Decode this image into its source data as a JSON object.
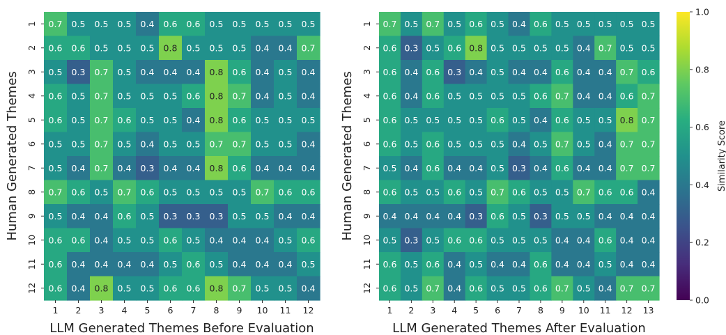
{
  "chart_data": [
    {
      "type": "heatmap",
      "ylabel": "Human Generated Themes",
      "xlabel": "LLM Generated Themes Before Evaluation",
      "x_categories": [
        "1",
        "2",
        "3",
        "4",
        "5",
        "6",
        "7",
        "8",
        "9",
        "10",
        "11",
        "12"
      ],
      "y_categories": [
        "1",
        "2",
        "3",
        "4",
        "5",
        "6",
        "7",
        "8",
        "9",
        "10",
        "11",
        "12"
      ],
      "values": [
        [
          0.7,
          0.5,
          0.5,
          0.5,
          0.4,
          0.6,
          0.6,
          0.5,
          0.5,
          0.5,
          0.5,
          0.5
        ],
        [
          0.6,
          0.6,
          0.5,
          0.5,
          0.5,
          0.8,
          0.5,
          0.5,
          0.5,
          0.4,
          0.4,
          0.7
        ],
        [
          0.5,
          0.3,
          0.7,
          0.5,
          0.4,
          0.4,
          0.4,
          0.8,
          0.6,
          0.4,
          0.5,
          0.4
        ],
        [
          0.6,
          0.5,
          0.7,
          0.5,
          0.5,
          0.5,
          0.6,
          0.8,
          0.7,
          0.4,
          0.5,
          0.4
        ],
        [
          0.6,
          0.5,
          0.7,
          0.6,
          0.5,
          0.5,
          0.4,
          0.8,
          0.6,
          0.5,
          0.5,
          0.5
        ],
        [
          0.5,
          0.5,
          0.7,
          0.5,
          0.4,
          0.5,
          0.5,
          0.7,
          0.7,
          0.5,
          0.5,
          0.4
        ],
        [
          0.5,
          0.4,
          0.7,
          0.4,
          0.3,
          0.4,
          0.4,
          0.8,
          0.6,
          0.4,
          0.4,
          0.4
        ],
        [
          0.7,
          0.6,
          0.5,
          0.7,
          0.6,
          0.5,
          0.5,
          0.5,
          0.5,
          0.7,
          0.6,
          0.6
        ],
        [
          0.5,
          0.4,
          0.4,
          0.6,
          0.5,
          0.3,
          0.3,
          0.3,
          0.5,
          0.5,
          0.4,
          0.4
        ],
        [
          0.6,
          0.6,
          0.4,
          0.5,
          0.5,
          0.6,
          0.5,
          0.4,
          0.4,
          0.4,
          0.5,
          0.6
        ],
        [
          0.6,
          0.4,
          0.4,
          0.4,
          0.4,
          0.5,
          0.6,
          0.5,
          0.4,
          0.4,
          0.4,
          0.5
        ],
        [
          0.6,
          0.4,
          0.8,
          0.5,
          0.5,
          0.6,
          0.6,
          0.8,
          0.7,
          0.5,
          0.5,
          0.4
        ]
      ]
    },
    {
      "type": "heatmap",
      "ylabel": "Human Generated Themes",
      "xlabel": "LLM Generated Themes After Evaluation",
      "x_categories": [
        "1",
        "2",
        "3",
        "4",
        "5",
        "6",
        "7",
        "8",
        "9",
        "10",
        "11",
        "12",
        "13"
      ],
      "y_categories": [
        "1",
        "2",
        "3",
        "4",
        "5",
        "6",
        "7",
        "8",
        "9",
        "10",
        "11",
        "12"
      ],
      "values": [
        [
          0.7,
          0.5,
          0.7,
          0.5,
          0.6,
          0.5,
          0.4,
          0.6,
          0.5,
          0.5,
          0.5,
          0.5,
          0.5
        ],
        [
          0.6,
          0.3,
          0.5,
          0.6,
          0.8,
          0.5,
          0.5,
          0.5,
          0.5,
          0.4,
          0.7,
          0.5,
          0.5
        ],
        [
          0.6,
          0.4,
          0.6,
          0.3,
          0.4,
          0.5,
          0.4,
          0.4,
          0.6,
          0.4,
          0.4,
          0.7,
          0.6
        ],
        [
          0.6,
          0.4,
          0.6,
          0.5,
          0.5,
          0.5,
          0.5,
          0.6,
          0.7,
          0.4,
          0.4,
          0.6,
          0.7
        ],
        [
          0.6,
          0.5,
          0.5,
          0.5,
          0.5,
          0.6,
          0.5,
          0.4,
          0.6,
          0.5,
          0.5,
          0.8,
          0.7
        ],
        [
          0.6,
          0.5,
          0.6,
          0.5,
          0.5,
          0.5,
          0.4,
          0.5,
          0.7,
          0.5,
          0.4,
          0.7,
          0.7
        ],
        [
          0.5,
          0.4,
          0.6,
          0.4,
          0.4,
          0.5,
          0.3,
          0.4,
          0.6,
          0.4,
          0.4,
          0.7,
          0.7
        ],
        [
          0.6,
          0.5,
          0.5,
          0.6,
          0.5,
          0.7,
          0.6,
          0.5,
          0.5,
          0.7,
          0.6,
          0.6,
          0.4
        ],
        [
          0.4,
          0.4,
          0.4,
          0.4,
          0.3,
          0.6,
          0.5,
          0.3,
          0.5,
          0.5,
          0.4,
          0.4,
          0.4
        ],
        [
          0.5,
          0.3,
          0.5,
          0.6,
          0.6,
          0.5,
          0.5,
          0.5,
          0.4,
          0.4,
          0.6,
          0.4,
          0.4
        ],
        [
          0.6,
          0.5,
          0.6,
          0.4,
          0.5,
          0.4,
          0.4,
          0.6,
          0.4,
          0.4,
          0.5,
          0.4,
          0.4
        ],
        [
          0.6,
          0.5,
          0.7,
          0.4,
          0.6,
          0.5,
          0.5,
          0.6,
          0.7,
          0.5,
          0.4,
          0.7,
          0.7
        ]
      ]
    }
  ],
  "colorbar": {
    "label": "Similarity Score",
    "colormap": "viridis",
    "range": [
      0.0,
      1.0
    ],
    "tick_values": [
      0.0,
      0.2,
      0.4,
      0.6,
      0.8,
      1.0
    ],
    "tick_labels": [
      "0.0",
      "0.2",
      "0.4",
      "0.6",
      "0.8",
      "1.0"
    ]
  }
}
